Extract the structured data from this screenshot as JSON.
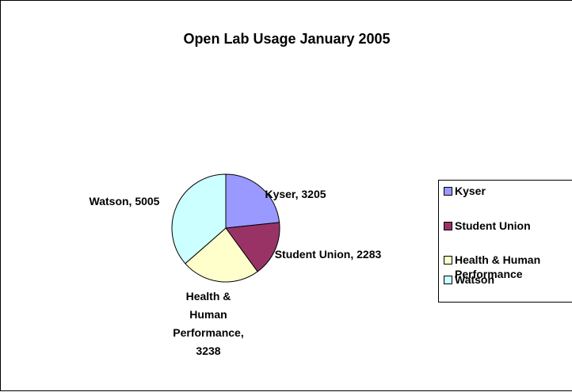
{
  "chart_data": {
    "type": "pie",
    "title": "Open Lab Usage January 2005",
    "categories": [
      "Kyser",
      "Student Union",
      "Health & Human Performance",
      "Watson"
    ],
    "values": [
      3205,
      2283,
      3238,
      5005
    ],
    "value_labels": [
      "Kyser, 3205",
      "Student Union, 2283",
      "Health & Human Performance, 3238",
      "Watson, 5005"
    ],
    "colors": [
      "#9999ff",
      "#993366",
      "#ffffcc",
      "#ccffff"
    ],
    "legend": "right"
  }
}
